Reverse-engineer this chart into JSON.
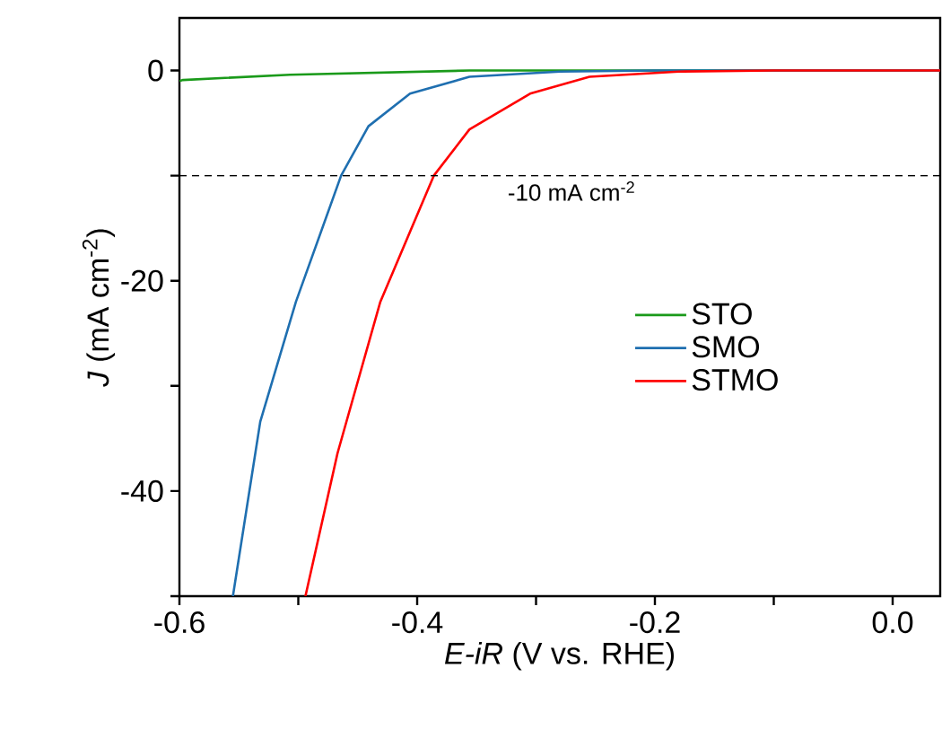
{
  "chart_data": {
    "type": "line",
    "xlabel": "*E-iR* (V vs. RHE)",
    "ylabel": "*J* (mA cm$^{-2}$)",
    "xlim": [
      -0.6,
      0.04
    ],
    "ylim": [
      -50,
      5
    ],
    "xticks": [
      -0.6,
      {
        "value": -0.5,
        "label": null
      },
      -0.4,
      {
        "value": -0.3,
        "label": null
      },
      -0.2,
      {
        "value": -0.1,
        "label": null
      },
      {
        "value": 0.0,
        "label": "0.0"
      }
    ],
    "yticks": [
      {
        "value": -50,
        "label": null
      },
      -40,
      {
        "value": -30,
        "label": null
      },
      -20,
      {
        "value": -10,
        "label": null
      },
      0
    ],
    "series": [
      {
        "name": "STO",
        "color": "#1a9a1a",
        "x": [
          -0.6,
          -0.597,
          -0.507,
          -0.356,
          -0.2,
          0.04
        ],
        "values": [
          -1.0,
          -0.9,
          -0.4,
          0,
          0,
          0
        ]
      },
      {
        "name": "SMO",
        "color": "#1f6fb0",
        "x": [
          -0.555,
          -0.532,
          -0.502,
          -0.464,
          -0.441,
          -0.406,
          -0.356,
          -0.28,
          -0.2,
          0.04
        ],
        "values": [
          -50,
          -33.4,
          -22.0,
          -10,
          -5.3,
          -2.2,
          -0.6,
          -0.1,
          0,
          0
        ]
      },
      {
        "name": "STMO",
        "color": "#ff0000",
        "x": [
          -0.494,
          -0.467,
          -0.431,
          -0.386,
          -0.356,
          -0.305,
          -0.255,
          -0.18,
          -0.1,
          0.04
        ],
        "values": [
          -50,
          -36.4,
          -22.0,
          -10,
          -5.6,
          -2.2,
          -0.6,
          -0.1,
          0,
          0
        ]
      }
    ],
    "ref_lines": [
      {
        "axis": "y",
        "value": -10,
        "label": "-10 mA cm$^{-2}$",
        "color": "#000000",
        "line_style": "dashed"
      }
    ],
    "legend": "center right",
    "marker": "none",
    "line_style": "solid",
    "grid": false
  }
}
